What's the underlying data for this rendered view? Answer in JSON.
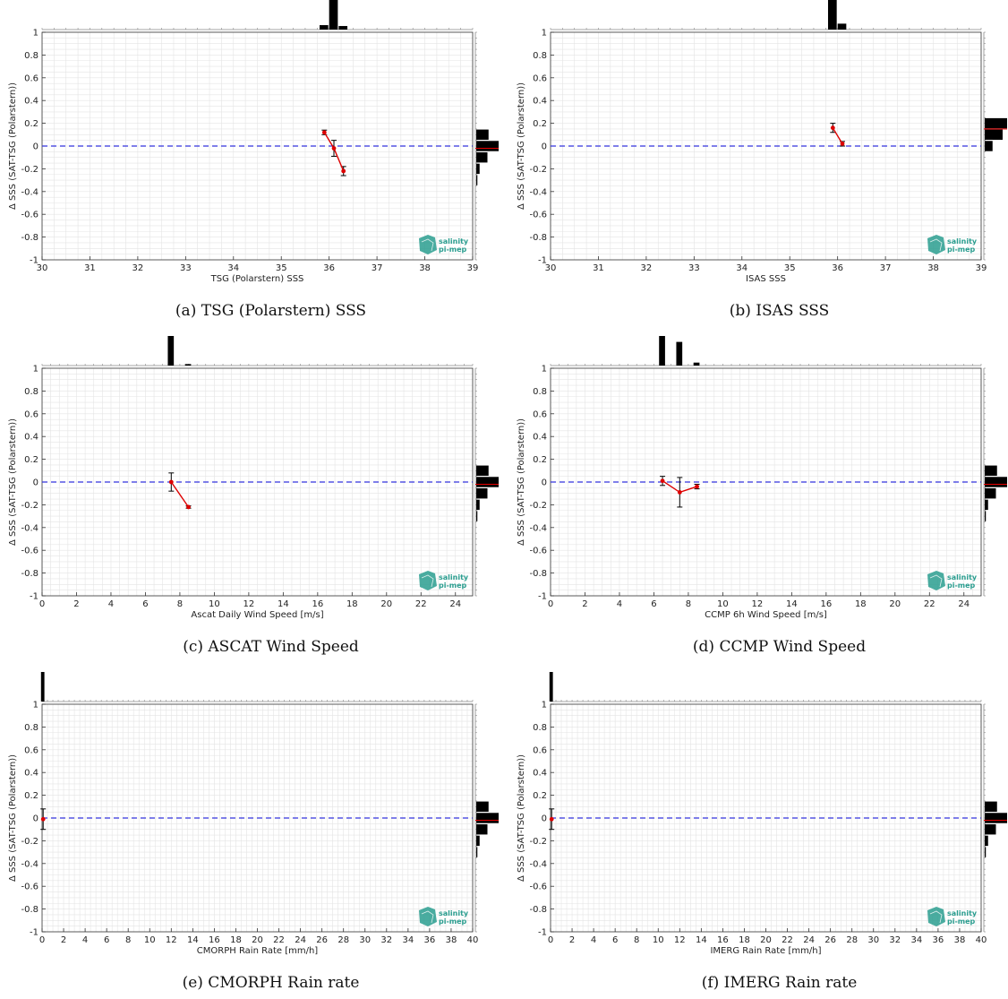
{
  "colors": {
    "zero_line": "#3333dd",
    "mean_line": "#dd0000",
    "error_bar": "#000000",
    "histogram": "#000000",
    "grid": "#e4e4e4",
    "logo": "#2a9d8f"
  },
  "logo": {
    "line1": "salinity",
    "line2": "pi-mep",
    "icon": "pimep-logo-icon"
  },
  "chart_data": [
    {
      "type": "scatter",
      "caption": "(a) TSG (Polarstern) SSS",
      "xlabel": "TSG (Polarstern) SSS",
      "ylabel": "Δ SSS (SAT-TSG (Polarstern))",
      "xlim": [
        30,
        39
      ],
      "ylim": [
        -1,
        1
      ],
      "xticks": [
        30,
        31,
        32,
        33,
        34,
        35,
        36,
        37,
        38,
        39
      ],
      "yticks": [
        -1,
        -0.8,
        -0.6,
        -0.4,
        -0.2,
        0,
        0.2,
        0.4,
        0.6,
        0.8,
        1
      ],
      "grid": true,
      "mean_series": [
        {
          "x": 35.9,
          "y": 0.12,
          "err": 0.02
        },
        {
          "x": 36.1,
          "y": -0.02,
          "err": 0.07
        },
        {
          "x": 36.3,
          "y": -0.22,
          "err": 0.04
        }
      ],
      "top_histogram": [
        {
          "x": 35.9,
          "h": 0.15
        },
        {
          "x": 36.1,
          "h": 1.0
        },
        {
          "x": 36.3,
          "h": 0.12
        }
      ],
      "right_histogram": [
        {
          "y": 0.1,
          "w": 0.55
        },
        {
          "y": 0.0,
          "w": 1.0
        },
        {
          "y": -0.1,
          "w": 0.5
        },
        {
          "y": -0.2,
          "w": 0.15
        },
        {
          "y": -0.3,
          "w": 0.05
        }
      ],
      "right_hist_mean": -0.02
    },
    {
      "type": "scatter",
      "caption": "(b) ISAS SSS",
      "xlabel": "ISAS SSS",
      "ylabel": "Δ SSS (SAT-TSG (Polarstern))",
      "xlim": [
        30,
        39
      ],
      "ylim": [
        -1,
        1
      ],
      "xticks": [
        30,
        31,
        32,
        33,
        34,
        35,
        36,
        37,
        38,
        39
      ],
      "yticks": [
        -1,
        -0.8,
        -0.6,
        -0.4,
        -0.2,
        0,
        0.2,
        0.4,
        0.6,
        0.8,
        1
      ],
      "grid": true,
      "mean_series": [
        {
          "x": 35.9,
          "y": 0.16,
          "err": 0.04
        },
        {
          "x": 36.1,
          "y": 0.02,
          "err": 0.02
        }
      ],
      "top_histogram": [
        {
          "x": 35.9,
          "h": 1.0
        },
        {
          "x": 36.1,
          "h": 0.2
        }
      ],
      "right_histogram": [
        {
          "y": 0.2,
          "w": 1.0
        },
        {
          "y": 0.1,
          "w": 0.8
        },
        {
          "y": 0.0,
          "w": 0.35
        }
      ],
      "right_hist_mean": 0.15
    },
    {
      "type": "scatter",
      "caption": "(c) ASCAT Wind Speed",
      "xlabel": "Ascat Daily Wind Speed [m/s]",
      "ylabel": "Δ SSS (SAT-TSG (Polarstern))",
      "xlim": [
        0,
        25
      ],
      "ylim": [
        -1,
        1
      ],
      "xticks": [
        0,
        2,
        4,
        6,
        8,
        10,
        12,
        14,
        16,
        18,
        20,
        22,
        24
      ],
      "yticks": [
        -1,
        -0.8,
        -0.6,
        -0.4,
        -0.2,
        0,
        0.2,
        0.4,
        0.6,
        0.8,
        1
      ],
      "grid": true,
      "mean_series": [
        {
          "x": 7.5,
          "y": 0.0,
          "err": 0.08
        },
        {
          "x": 8.5,
          "y": -0.22,
          "err": 0.01
        }
      ],
      "top_histogram": [
        {
          "x": 7.5,
          "h": 1.0
        },
        {
          "x": 8.5,
          "h": 0.05
        }
      ],
      "right_histogram": [
        {
          "y": 0.1,
          "w": 0.55
        },
        {
          "y": 0.0,
          "w": 1.0
        },
        {
          "y": -0.1,
          "w": 0.5
        },
        {
          "y": -0.2,
          "w": 0.15
        },
        {
          "y": -0.3,
          "w": 0.05
        }
      ],
      "right_hist_mean": -0.02
    },
    {
      "type": "scatter",
      "caption": "(d) CCMP Wind Speed",
      "xlabel": "CCMP 6h Wind Speed [m/s]",
      "ylabel": "Δ SSS (SAT-TSG (Polarstern))",
      "xlim": [
        0,
        25
      ],
      "ylim": [
        -1,
        1
      ],
      "xticks": [
        0,
        2,
        4,
        6,
        8,
        10,
        12,
        14,
        16,
        18,
        20,
        22,
        24
      ],
      "yticks": [
        -1,
        -0.8,
        -0.6,
        -0.4,
        -0.2,
        0,
        0.2,
        0.4,
        0.6,
        0.8,
        1
      ],
      "grid": true,
      "mean_series": [
        {
          "x": 6.5,
          "y": 0.01,
          "err": 0.04
        },
        {
          "x": 7.5,
          "y": -0.09,
          "err": 0.13
        },
        {
          "x": 8.5,
          "y": -0.04,
          "err": 0.02
        }
      ],
      "top_histogram": [
        {
          "x": 6.5,
          "h": 1.0
        },
        {
          "x": 7.5,
          "h": 0.8
        },
        {
          "x": 8.5,
          "h": 0.1
        }
      ],
      "right_histogram": [
        {
          "y": 0.1,
          "w": 0.55
        },
        {
          "y": 0.0,
          "w": 1.0
        },
        {
          "y": -0.1,
          "w": 0.5
        },
        {
          "y": -0.2,
          "w": 0.15
        },
        {
          "y": -0.3,
          "w": 0.05
        }
      ],
      "right_hist_mean": -0.02
    },
    {
      "type": "scatter",
      "caption": "(e) CMORPH Rain rate",
      "xlabel": "CMORPH Rain Rate [mm/h]",
      "ylabel": "Δ SSS (SAT-TSG (Polarstern))",
      "xlim": [
        0,
        40
      ],
      "ylim": [
        -1,
        1
      ],
      "xticks": [
        0,
        2,
        4,
        6,
        8,
        10,
        12,
        14,
        16,
        18,
        20,
        22,
        24,
        26,
        28,
        30,
        32,
        34,
        36,
        38,
        40
      ],
      "yticks": [
        -1,
        -0.8,
        -0.6,
        -0.4,
        -0.2,
        0,
        0.2,
        0.4,
        0.6,
        0.8,
        1
      ],
      "grid": true,
      "mean_series": [
        {
          "x": 0.1,
          "y": -0.01,
          "err": 0.09
        }
      ],
      "top_histogram": [
        {
          "x": 0.1,
          "h": 1.0
        }
      ],
      "right_histogram": [
        {
          "y": 0.1,
          "w": 0.55
        },
        {
          "y": 0.0,
          "w": 1.0
        },
        {
          "y": -0.1,
          "w": 0.5
        },
        {
          "y": -0.2,
          "w": 0.15
        },
        {
          "y": -0.3,
          "w": 0.05
        }
      ],
      "right_hist_mean": -0.02
    },
    {
      "type": "scatter",
      "caption": "(f) IMERG Rain rate",
      "xlabel": "IMERG Rain Rate [mm/h]",
      "ylabel": "Δ SSS (SAT-TSG (Polarstern))",
      "xlim": [
        0,
        40
      ],
      "ylim": [
        -1,
        1
      ],
      "xticks": [
        0,
        2,
        4,
        6,
        8,
        10,
        12,
        14,
        16,
        18,
        20,
        22,
        24,
        26,
        28,
        30,
        32,
        34,
        36,
        38,
        40
      ],
      "yticks": [
        -1,
        -0.8,
        -0.6,
        -0.4,
        -0.2,
        0,
        0.2,
        0.4,
        0.6,
        0.8,
        1
      ],
      "grid": true,
      "mean_series": [
        {
          "x": 0.1,
          "y": -0.01,
          "err": 0.09
        }
      ],
      "top_histogram": [
        {
          "x": 0.1,
          "h": 1.0
        }
      ],
      "right_histogram": [
        {
          "y": 0.1,
          "w": 0.55
        },
        {
          "y": 0.0,
          "w": 1.0
        },
        {
          "y": -0.1,
          "w": 0.5
        },
        {
          "y": -0.2,
          "w": 0.15
        },
        {
          "y": -0.3,
          "w": 0.05
        }
      ],
      "right_hist_mean": -0.02
    }
  ]
}
